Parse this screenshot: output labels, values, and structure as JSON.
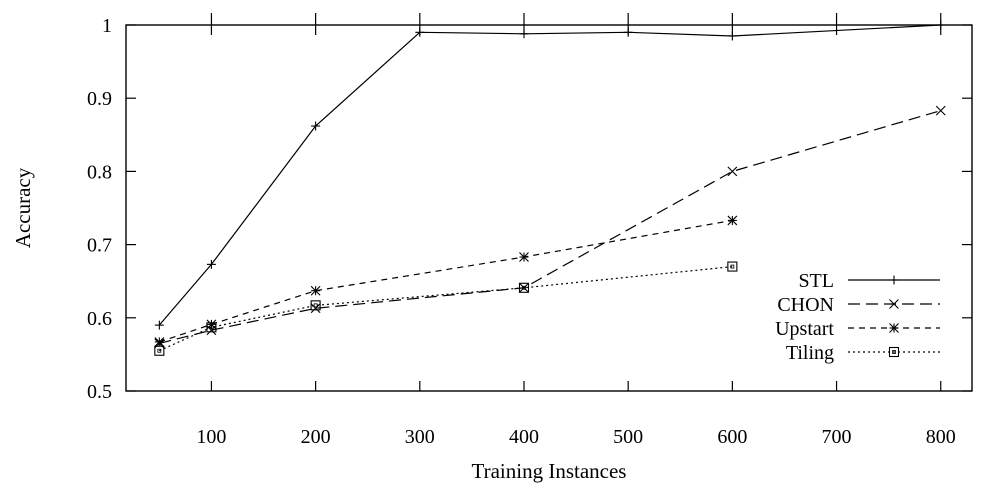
{
  "chart_data": {
    "type": "line",
    "title": "",
    "xlabel": "Training Instances",
    "ylabel": "Accuracy",
    "xlim": [
      18,
      830
    ],
    "ylim": [
      0.5,
      1.0
    ],
    "x_ticks": [
      100,
      200,
      300,
      400,
      500,
      600,
      700,
      800
    ],
    "y_ticks": [
      0.5,
      0.6,
      0.7,
      0.8,
      0.9,
      1
    ],
    "x_tick_labels": [
      "100",
      "200",
      "300",
      "400",
      "500",
      "600",
      "700",
      "800"
    ],
    "y_tick_labels": [
      "0.5",
      "0.6",
      "0.7",
      "0.8",
      "0.9",
      "1"
    ],
    "grid": false,
    "legend_position": "bottom-right",
    "series": [
      {
        "name": "STL",
        "marker": "plus",
        "dash": "solid",
        "color": "#000000",
        "x": [
          50,
          100,
          200,
          300,
          400,
          500,
          600,
          800
        ],
        "y": [
          0.59,
          0.673,
          0.862,
          0.99,
          0.988,
          0.99,
          0.985,
          1.0
        ]
      },
      {
        "name": "CHON",
        "marker": "cross",
        "dash": "long-dash",
        "color": "#000000",
        "x": [
          50,
          100,
          200,
          400,
          600,
          800
        ],
        "y": [
          0.565,
          0.583,
          0.613,
          0.641,
          0.8,
          0.883
        ]
      },
      {
        "name": "Upstart",
        "marker": "star",
        "dash": "short-dash",
        "color": "#000000",
        "x": [
          50,
          100,
          200,
          400,
          600
        ],
        "y": [
          0.567,
          0.591,
          0.637,
          0.683,
          0.733
        ]
      },
      {
        "name": "Tiling",
        "marker": "square",
        "dash": "dotted",
        "color": "#000000",
        "x": [
          50,
          100,
          200,
          400,
          600
        ],
        "y": [
          0.555,
          0.587,
          0.617,
          0.641,
          0.67
        ]
      }
    ]
  }
}
